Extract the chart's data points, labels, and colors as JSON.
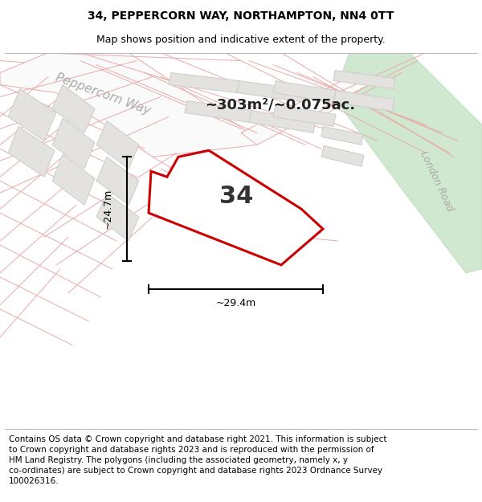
{
  "title_line1": "34, PEPPERCORN WAY, NORTHAMPTON, NN4 0TT",
  "title_line2": "Map shows position and indicative extent of the property.",
  "area_text": "~303m²/~0.075ac.",
  "number_label": "34",
  "dim_width": "~29.4m",
  "dim_height": "~24.7m",
  "road_label_1": "Peppercorn Way",
  "road_label_2": "London Road",
  "footer_text": "Contains OS data © Crown copyright and database right 2021. This information is subject to Crown copyright and database rights 2023 and is reproduced with the permission of HM Land Registry. The polygons (including the associated geometry, namely x, y co-ordinates) are subject to Crown copyright and database rights 2023 Ordnance Survey 100026316.",
  "map_bg": "#f2f0ed",
  "plot_outline_color": "#cc0000",
  "green_area_color": "#d0e8d0",
  "gray_block_fill": "#e4e2de",
  "gray_block_edge": "#cccccc",
  "pink_line_color": "#e8aaaa",
  "white_road_fill": "#fafafa",
  "title_fontsize": 10,
  "subtitle_fontsize": 9,
  "footer_fontsize": 7.5
}
